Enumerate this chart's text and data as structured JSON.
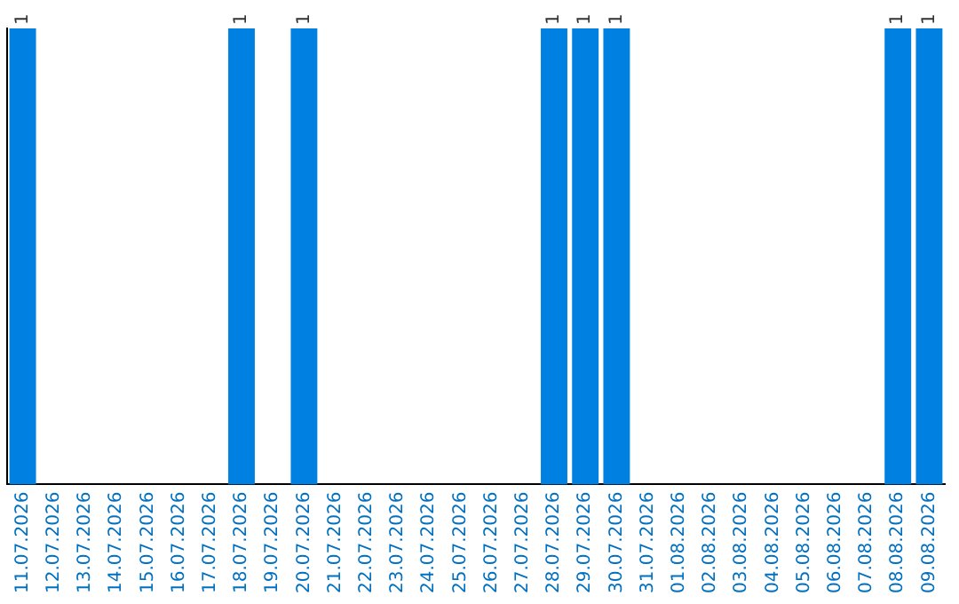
{
  "chart_data": {
    "type": "bar",
    "categories": [
      "11.07.2026",
      "12.07.2026",
      "13.07.2026",
      "14.07.2026",
      "15.07.2026",
      "16.07.2026",
      "17.07.2026",
      "18.07.2026",
      "19.07.2026",
      "20.07.2026",
      "21.07.2026",
      "22.07.2026",
      "23.07.2026",
      "24.07.2026",
      "25.07.2026",
      "26.07.2026",
      "27.07.2026",
      "28.07.2026",
      "29.07.2026",
      "30.07.2026",
      "31.07.2026",
      "01.08.2026",
      "02.08.2026",
      "03.08.2026",
      "04.08.2026",
      "05.08.2026",
      "06.08.2026",
      "07.08.2026",
      "08.08.2026",
      "09.08.2026"
    ],
    "values": [
      1,
      0,
      0,
      0,
      0,
      0,
      0,
      1,
      0,
      1,
      0,
      0,
      0,
      0,
      0,
      0,
      0,
      1,
      1,
      1,
      0,
      0,
      0,
      0,
      0,
      0,
      0,
      0,
      1,
      1
    ],
    "value_labels": [
      "1",
      null,
      null,
      null,
      null,
      null,
      null,
      "1",
      null,
      "1",
      null,
      null,
      null,
      null,
      null,
      null,
      null,
      "1",
      "1",
      "1",
      null,
      null,
      null,
      null,
      null,
      null,
      null,
      null,
      "1",
      "1"
    ],
    "color": "#0080e0",
    "grid": false,
    "legend": false,
    "tick_labels": "x"
  }
}
